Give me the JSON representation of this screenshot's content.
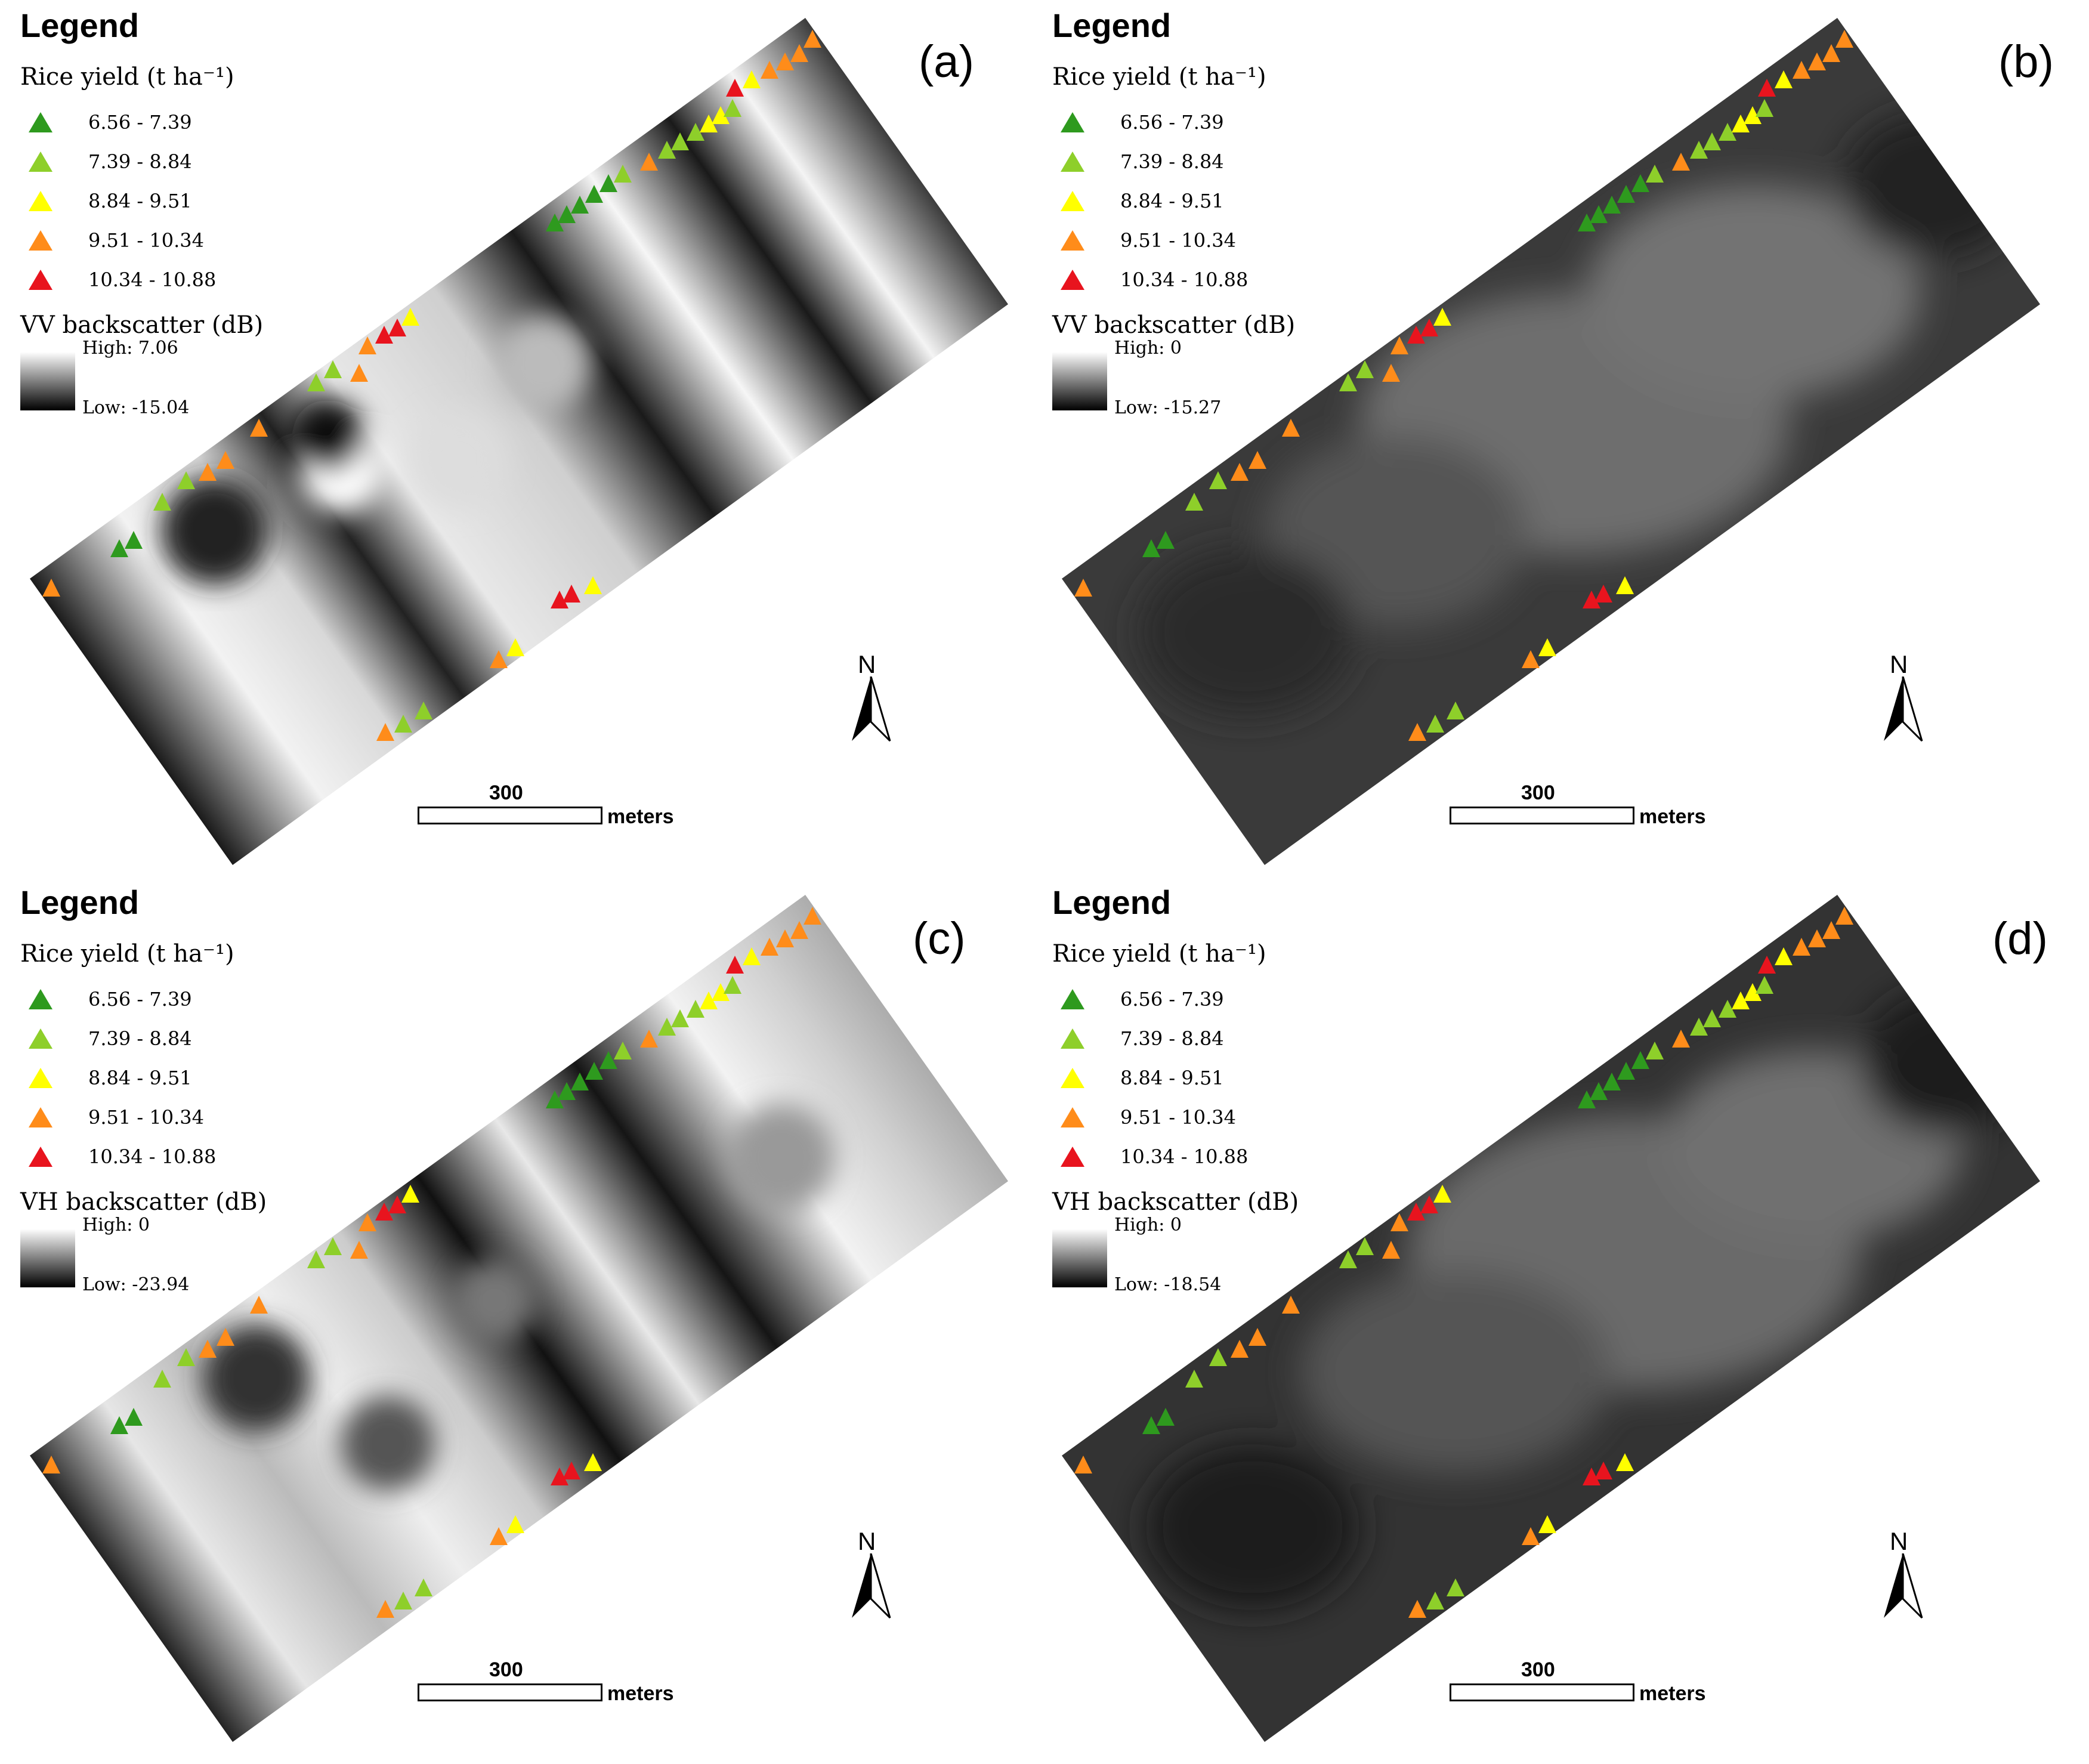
{
  "legend_title": "Legend",
  "yield_heading": "Rice yield (t ha⁻¹)",
  "yield_classes": [
    {
      "label": "6.56 - 7.39",
      "color": "#2e9a1e"
    },
    {
      "label": "7.39 - 8.84",
      "color": "#8ecf2a"
    },
    {
      "label": "8.84 - 9.51",
      "color": "#ffff00"
    },
    {
      "label": "9.51 - 10.34",
      "color": "#ff8c1a"
    },
    {
      "label": "10.34 - 10.88",
      "color": "#e8141e"
    }
  ],
  "north_label": "N",
  "scale": {
    "value": "300",
    "unit": "meters"
  },
  "panels": [
    {
      "letter": "(a)",
      "backscatter_heading": "VV backscatter (dB)",
      "high": "High: 7.06",
      "low": "Low: -15.04"
    },
    {
      "letter": "(b)",
      "backscatter_heading": "VV backscatter (dB)",
      "high": "High: 0",
      "low": "Low: -15.27"
    },
    {
      "letter": "(c)",
      "backscatter_heading": "VH backscatter (dB)",
      "high": "High: 0",
      "low": "Low: -23.94"
    },
    {
      "letter": "(d)",
      "backscatter_heading": "VH backscatter (dB)",
      "high": "High: 0",
      "low": "Low: -18.54"
    }
  ]
}
